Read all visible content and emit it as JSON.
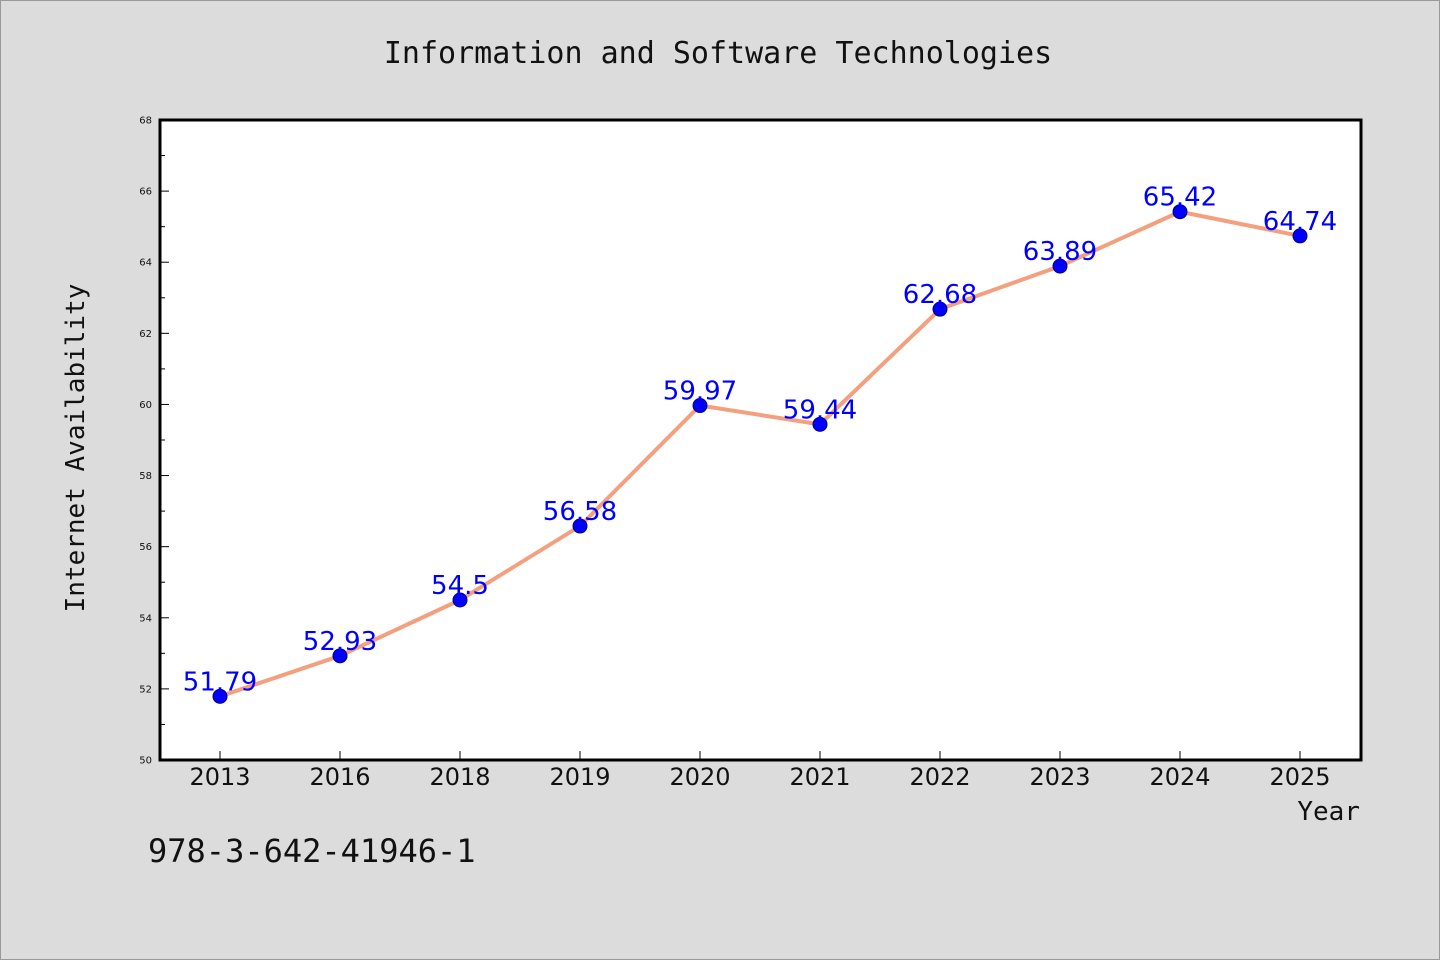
{
  "chart_data": {
    "type": "line",
    "title": "Information and Software Technologies",
    "xlabel": "Year",
    "ylabel": "Internet Availability",
    "categories": [
      "2013",
      "2016",
      "2018",
      "2019",
      "2020",
      "2021",
      "2022",
      "2023",
      "2024",
      "2025"
    ],
    "series": [
      {
        "values": [
          51.79,
          52.93,
          54.5,
          56.58,
          59.97,
          59.44,
          62.68,
          63.89,
          65.42,
          64.74
        ]
      }
    ],
    "data_labels": [
      "51.79",
      "52.93",
      "54.5",
      "56.58",
      "59.97",
      "59.44",
      "62.68",
      "63.89",
      "65.42",
      "64.74"
    ],
    "ylim": [
      50,
      68
    ],
    "yticks": [
      "50",
      "52",
      "54",
      "56",
      "58",
      "60",
      "62",
      "64",
      "66",
      "68"
    ],
    "grid": false,
    "line_color": "#f4a07e",
    "marker_color": "#0000ff",
    "label_color": "#0000ff"
  },
  "footnote": "978-3-642-41946-1"
}
